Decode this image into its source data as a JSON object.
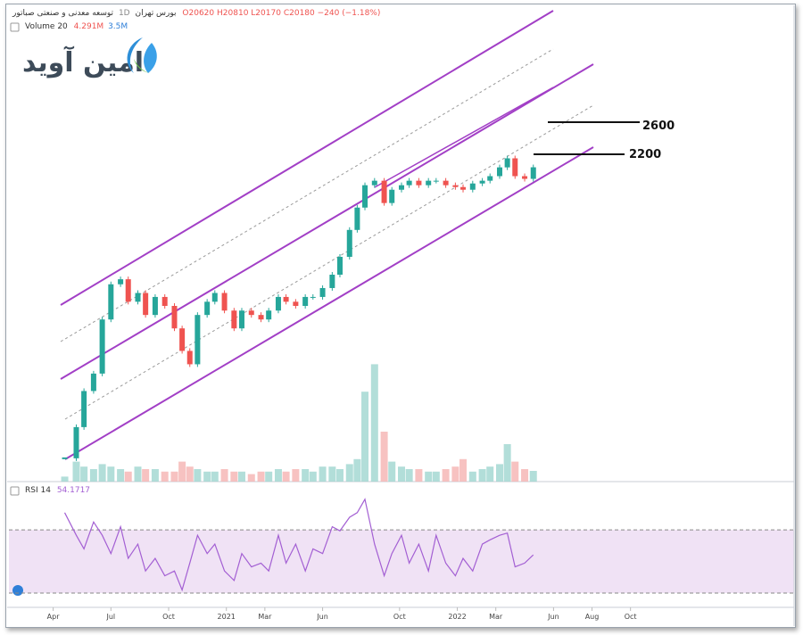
{
  "logo": "امین آوید",
  "chart_data": [
    {
      "type": "candlestick",
      "title": "توسعه معدنی و صنعتی صباتور",
      "interval": "1D",
      "exchange": "بورس تهران",
      "ohlc": [
        "O20620",
        "H20810",
        "L20170",
        "C20180"
      ],
      "change": "−240 (−1.18%)",
      "annotations": [
        "2600",
        "2200"
      ],
      "x": [
        0.6,
        1.2,
        1.6,
        2.1,
        2.55,
        3.0,
        3.5,
        3.9,
        4.4,
        4.8,
        5.3,
        5.8,
        6.3,
        6.7,
        7.1,
        7.5,
        8.0,
        8.4,
        8.9,
        9.4,
        9.8,
        10.3,
        10.8,
        11.2,
        11.7,
        12.1,
        12.6,
        13.1,
        13.5,
        14.0,
        14.5,
        14.9,
        15.4,
        15.8,
        16.2,
        16.7,
        17.2,
        17.6,
        18.1,
        18.5,
        19.0,
        19.5,
        19.9,
        20.4,
        20.9,
        21.3,
        21.8,
        22.3,
        22.7,
        23.2,
        23.6,
        24.0,
        24.5,
        24.95
      ],
      "values": [
        3880,
        4630,
        5680,
        6270,
        8520,
        10400,
        10700,
        9420,
        9900,
        8740,
        9680,
        9200,
        8100,
        7130,
        6610,
        8740,
        9420,
        9900,
        8960,
        8100,
        8960,
        8740,
        8520,
        8960,
        9680,
        9420,
        9200,
        9680,
        9680,
        10180,
        10980,
        12150,
        14150,
        16060,
        18230,
        18700,
        16480,
        17770,
        18230,
        18700,
        18230,
        18700,
        18700,
        18230,
        18040,
        17770,
        18410,
        18700,
        19190,
        20170,
        21230,
        19190,
        18900,
        20180
      ],
      "log_scale": true,
      "ylim": [
        3400,
        50000
      ],
      "xlim": [
        -2.3,
        38.5
      ],
      "xticks": [
        {
          "value": 0,
          "label": "Apr"
        },
        {
          "value": 3,
          "label": "Jul"
        },
        {
          "value": 6,
          "label": "Oct"
        },
        {
          "value": 9,
          "label": "2021"
        },
        {
          "value": 11,
          "label": "Mar"
        },
        {
          "value": 14,
          "label": "Jun"
        },
        {
          "value": 18,
          "label": "Oct"
        },
        {
          "value": 21,
          "label": "2022"
        },
        {
          "value": 23,
          "label": "Mar"
        },
        {
          "value": 26,
          "label": "Jun"
        },
        {
          "value": 28,
          "label": "Aug"
        },
        {
          "value": 30,
          "label": "Oct"
        }
      ],
      "up_color": "#26a69a",
      "down_color": "#ef5350"
    },
    {
      "type": "bar",
      "title": "Volume 20",
      "legend_values": [
        "4.291M",
        "3.5M"
      ],
      "values": [
        2,
        8,
        6,
        5,
        7,
        6,
        5,
        4,
        6,
        5,
        5,
        4,
        4,
        8,
        6,
        5,
        4,
        4,
        5,
        4,
        4,
        3,
        4,
        4,
        5,
        4,
        5,
        5,
        4,
        6,
        6,
        5,
        7,
        9,
        36,
        47,
        20,
        8,
        6,
        5,
        5,
        4,
        4,
        5,
        6,
        9,
        4,
        5,
        6,
        7,
        15,
        8,
        5,
        4.291
      ],
      "ylim": [
        0,
        190
      ],
      "up_color": "#9fd6cf",
      "down_color": "#f5b3b1"
    },
    {
      "type": "line",
      "title": "RSI 14",
      "legend_value": "54.1717",
      "values": [
        80.9,
        66.6,
        58,
        75,
        66.6,
        55,
        72,
        52,
        61,
        44,
        52,
        41,
        44,
        32,
        49,
        66.6,
        55,
        61,
        44,
        38,
        55,
        46.6,
        49,
        44,
        66.6,
        49,
        61,
        44,
        58,
        55,
        72,
        69.4,
        78,
        80.9,
        89.4,
        61,
        41,
        55,
        66.6,
        49,
        61,
        44,
        66.6,
        49,
        41,
        52,
        44,
        61,
        63.7,
        66.6,
        68,
        46.6,
        49,
        54.1717
      ],
      "ylim": [
        21,
        100
      ],
      "bands": [
        30,
        70
      ],
      "color": "#a35fd3",
      "band_color": "#f0e2f5"
    }
  ]
}
